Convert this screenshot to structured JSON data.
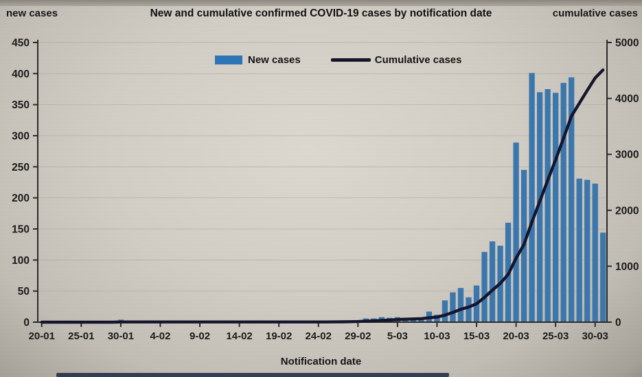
{
  "header": {
    "left_axis_title": "new cases",
    "title": "New and cumulative confirmed COVID-19 cases by notification date",
    "right_axis_title": "cumulative cases"
  },
  "legend": {
    "new_cases_label": "New cases",
    "cumulative_label": "Cumulative cases"
  },
  "xaxis_title": "Notification date",
  "colors": {
    "bar": "#3b76ac",
    "legend_bar": "#2e75b6",
    "line": "#15152d",
    "grid": "#a9a59b",
    "axis": "#2b2b2b",
    "text": "#1b1b1b"
  },
  "chart_data": {
    "type": "bar",
    "title": "New and cumulative confirmed COVID-19 cases by notification date",
    "xlabel": "Notification date",
    "grid": true,
    "legend_position": "top-center",
    "left_axis": {
      "label": "new cases",
      "min": 0,
      "max": 450,
      "step": 50,
      "ticks": [
        0,
        50,
        100,
        150,
        200,
        250,
        300,
        350,
        400,
        450
      ]
    },
    "right_axis": {
      "label": "cumulative cases",
      "min": 0,
      "max": 5000,
      "step": 1000,
      "ticks": [
        0,
        1000,
        2000,
        3000,
        4000,
        5000
      ]
    },
    "x_tick_labels": [
      "20-01",
      "25-01",
      "30-01",
      "4-02",
      "9-02",
      "14-02",
      "19-02",
      "24-02",
      "29-02",
      "5-03",
      "10-03",
      "15-03",
      "20-03",
      "25-03",
      "30-03"
    ],
    "x_tick_positions": [
      0,
      5,
      10,
      15,
      20,
      25,
      30,
      35,
      40,
      45,
      50,
      55,
      60,
      65,
      70
    ],
    "x": [
      "20-01",
      "21-01",
      "22-01",
      "23-01",
      "24-01",
      "25-01",
      "26-01",
      "27-01",
      "28-01",
      "29-01",
      "30-01",
      "31-01",
      "1-02",
      "2-02",
      "3-02",
      "4-02",
      "5-02",
      "6-02",
      "7-02",
      "8-02",
      "9-02",
      "10-02",
      "11-02",
      "12-02",
      "13-02",
      "14-02",
      "15-02",
      "16-02",
      "17-02",
      "18-02",
      "19-02",
      "20-02",
      "21-02",
      "22-02",
      "23-02",
      "24-02",
      "25-02",
      "26-02",
      "27-02",
      "28-02",
      "29-02",
      "1-03",
      "2-03",
      "3-03",
      "4-03",
      "5-03",
      "6-03",
      "7-03",
      "8-03",
      "9-03",
      "10-03",
      "11-03",
      "12-03",
      "13-03",
      "14-03",
      "15-03",
      "16-03",
      "17-03",
      "18-03",
      "19-03",
      "20-03",
      "21-03",
      "22-03",
      "23-03",
      "24-03",
      "25-03",
      "26-03",
      "27-03",
      "28-03",
      "29-03",
      "30-03",
      "31-03"
    ],
    "series": [
      {
        "name": "New cases",
        "type": "bar",
        "axis": "left",
        "values": [
          0,
          0,
          0,
          0,
          0,
          0,
          0,
          0,
          0,
          0,
          4,
          0,
          0,
          0,
          0,
          0,
          0,
          0,
          0,
          0,
          0,
          0,
          0,
          0,
          0,
          0,
          0,
          0,
          0,
          0,
          0,
          0,
          0,
          0,
          0,
          0,
          0,
          1,
          1,
          2,
          3,
          6,
          6,
          8,
          7,
          8,
          7,
          5,
          4,
          17,
          12,
          35,
          48,
          55,
          40,
          59,
          113,
          130,
          123,
          160,
          289,
          245,
          401,
          370,
          375,
          369,
          385,
          394,
          231,
          229,
          223,
          144
        ]
      },
      {
        "name": "Cumulative cases",
        "type": "line",
        "axis": "right",
        "values": [
          0,
          0,
          0,
          0,
          0,
          0,
          0,
          0,
          0,
          0,
          4,
          4,
          4,
          4,
          4,
          4,
          4,
          4,
          4,
          4,
          4,
          4,
          4,
          4,
          4,
          4,
          4,
          4,
          4,
          4,
          4,
          4,
          4,
          4,
          4,
          4,
          4,
          5,
          6,
          8,
          11,
          17,
          23,
          31,
          38,
          46,
          53,
          58,
          62,
          79,
          91,
          126,
          174,
          229,
          269,
          328,
          441,
          571,
          694,
          854,
          1143,
          1388,
          1789,
          2159,
          2534,
          2903,
          3288,
          3682,
          3913,
          4142,
          4365,
          4509
        ]
      }
    ]
  }
}
